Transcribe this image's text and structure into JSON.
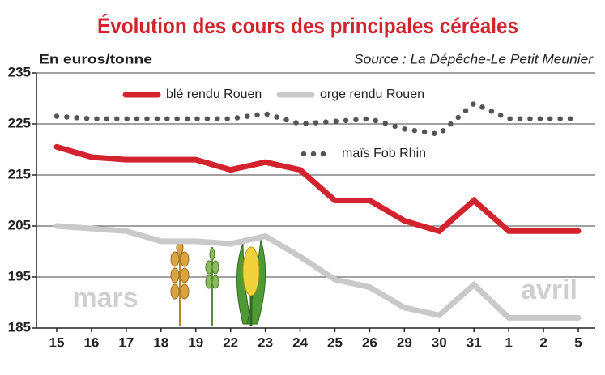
{
  "chart_data": {
    "type": "line",
    "title": "Évolution des cours des principales céréales",
    "y_label": "En euros/tonne",
    "source": "Source : La Dépêche-Le Petit Meunier",
    "annotations": [
      "mars",
      "avril"
    ],
    "categories": [
      "15",
      "16",
      "17",
      "18",
      "19",
      "22",
      "23",
      "24",
      "25",
      "26",
      "29",
      "30",
      "31",
      "1",
      "2",
      "5"
    ],
    "series": [
      {
        "name": "blé rendu Rouen",
        "color": "#d2232f",
        "line_style": "solid",
        "values": [
          220.5,
          218.5,
          218,
          218,
          218,
          216,
          217.5,
          216,
          210,
          210,
          206,
          204,
          210,
          204,
          204,
          204
        ]
      },
      {
        "name": "orge rendu Rouen",
        "color": "#c9c9c9",
        "line_style": "solid",
        "values": [
          205,
          204.5,
          204,
          202,
          202,
          201.5,
          203,
          199,
          194.5,
          193,
          189,
          187.5,
          193.5,
          187,
          187,
          187
        ]
      },
      {
        "name": "maïs Fob Rhin",
        "color": "#555555",
        "line_style": "dotted",
        "values": [
          226.5,
          226,
          226,
          226,
          226,
          226,
          227,
          225,
          225.5,
          226,
          224,
          223,
          229,
          226,
          226,
          226
        ]
      }
    ],
    "ylim": [
      185,
      235
    ],
    "yticks": [
      185,
      195,
      205,
      215,
      225,
      235
    ],
    "grid": true
  }
}
